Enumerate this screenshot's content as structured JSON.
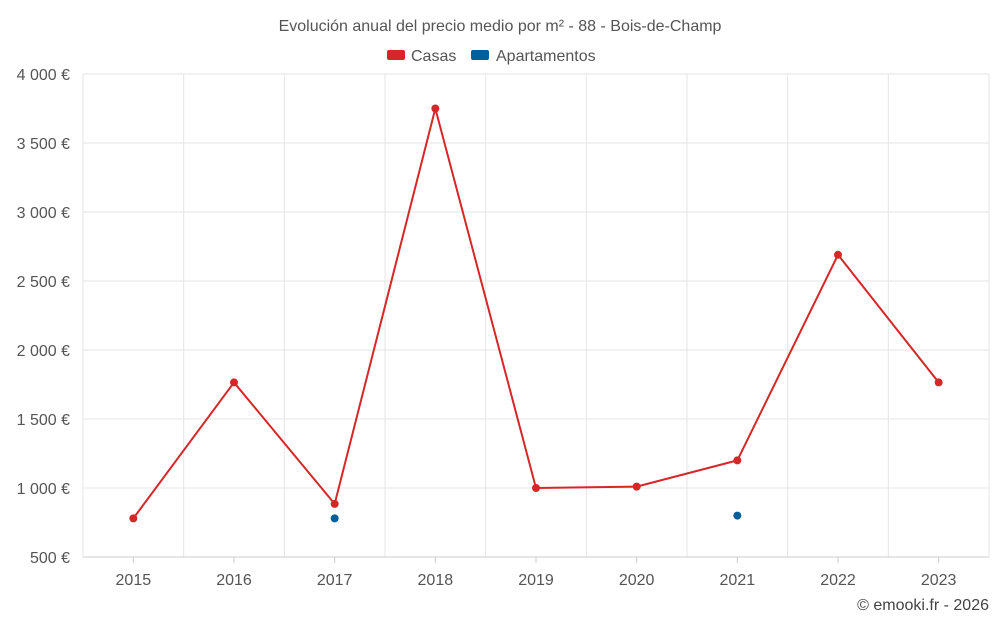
{
  "chart_data": {
    "type": "line",
    "title": "Evolución anual del precio medio por m² - 88 - Bois-de-Champ",
    "categories": [
      "2015",
      "2016",
      "2017",
      "2018",
      "2019",
      "2020",
      "2021",
      "2022",
      "2023"
    ],
    "series": [
      {
        "name": "Casas",
        "color": "#d62728",
        "values": [
          780,
          1765,
          885,
          3750,
          1000,
          1010,
          1200,
          2690,
          1765
        ]
      },
      {
        "name": "Apartamentos",
        "color": "#005f99",
        "values": [
          null,
          null,
          780,
          null,
          null,
          null,
          800,
          null,
          null
        ]
      }
    ],
    "ylim": [
      500,
      4000
    ],
    "yticks": [
      500,
      1000,
      1500,
      2000,
      2500,
      3000,
      3500,
      4000
    ],
    "ytick_labels": [
      "500 €",
      "1 000 €",
      "1 500 €",
      "2 000 €",
      "2 500 €",
      "3 000 €",
      "3 500 €",
      "4 000 €"
    ],
    "xlabel": "",
    "ylabel": "",
    "grid": true,
    "legend_position": "top-center"
  },
  "credit": "© emooki.fr - 2026"
}
